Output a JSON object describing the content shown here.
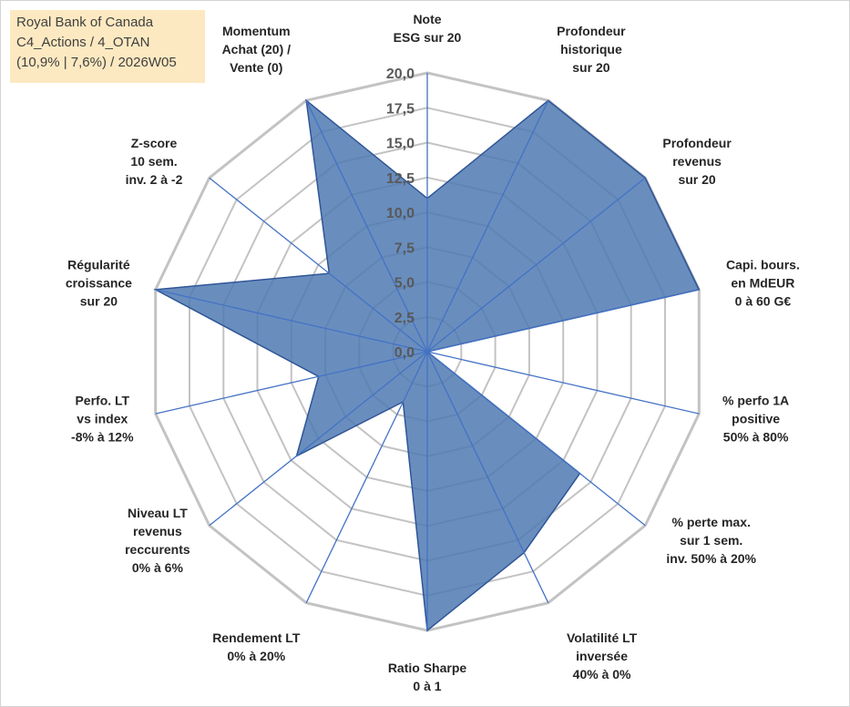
{
  "info_box": {
    "line1": "Royal Bank of Canada",
    "line2": "C4_Actions / 4_OTAN",
    "line3": "(10,9% | 7,6%) / 2026W05"
  },
  "colors": {
    "fill": "#4f7ab3",
    "stroke": "#2f5597",
    "spoke": "#4472c4",
    "grid": "#c3c3c3",
    "info_box_bg": "#fde9c1"
  },
  "chart_data": {
    "type": "radar",
    "rmin": 0,
    "rmax": 20,
    "ticks": [
      "0,0",
      "2,5",
      "5,0",
      "7,5",
      "10,0",
      "12,5",
      "15,0",
      "17,5",
      "20,0"
    ],
    "grid": true,
    "axes": [
      {
        "lines": [
          "Note",
          "ESG sur 20"
        ],
        "value": 11
      },
      {
        "lines": [
          "Profondeur",
          "historique",
          "sur 20"
        ],
        "value": 20
      },
      {
        "lines": [
          "Profondeur",
          "revenus",
          "sur 20"
        ],
        "value": 20
      },
      {
        "lines": [
          "Capi. bours.",
          "en MdEUR",
          "0 à 60 G€"
        ],
        "value": 20
      },
      {
        "lines": [
          "% perfo 1A",
          "positive",
          "50% à 80%"
        ],
        "value": 0
      },
      {
        "lines": [
          "% perte max.",
          "sur 1 sem.",
          "inv. 50% à 20%"
        ],
        "value": 14
      },
      {
        "lines": [
          "Volatilité LT",
          "inversée",
          "40% à 0%"
        ],
        "value": 16
      },
      {
        "lines": [
          "Ratio Sharpe",
          "0 à 1"
        ],
        "value": 20
      },
      {
        "lines": [
          "Rendement LT",
          "0% à 20%"
        ],
        "value": 4
      },
      {
        "lines": [
          "Niveau LT",
          "revenus",
          "reccurents",
          "0% à 6%"
        ],
        "value": 12
      },
      {
        "lines": [
          "Perfo. LT",
          "vs index",
          "-8% à 12%"
        ],
        "value": 8
      },
      {
        "lines": [
          "Régularité",
          "croissance",
          "sur 20"
        ],
        "value": 20
      },
      {
        "lines": [
          "Z-score",
          "10 sem.",
          "inv. 2 à -2"
        ],
        "value": 9
      },
      {
        "lines": [
          "Momentum",
          "Achat (20) /",
          "Vente (0)"
        ],
        "value": 20
      }
    ]
  }
}
